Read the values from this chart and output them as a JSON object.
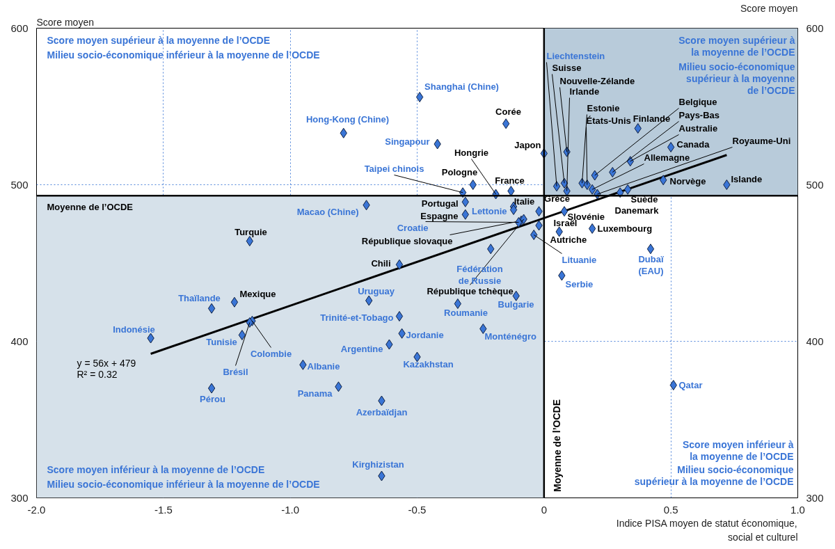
{
  "chart_data": {
    "type": "scatter",
    "ylabel": "Score moyen",
    "y2label": "Score moyen",
    "xlabel": "Indice PISA moyen de statut économique, social et culturel",
    "xlim": [
      -2.0,
      1.0
    ],
    "xticks": [
      {
        "value": -2.0,
        "label": "-2.0"
      },
      {
        "value": -1.5,
        "label": "-1.5"
      },
      {
        "value": -1.0,
        "label": "-1.0"
      },
      {
        "value": -0.5,
        "label": "-0.5"
      },
      0,
      0.5,
      {
        "value": 1.0,
        "label": "1.0"
      }
    ],
    "ylim": [
      300,
      600
    ],
    "yticks": [
      300,
      400,
      500,
      600
    ],
    "y2lim": [
      300,
      600
    ],
    "y2ticks": [
      300,
      400,
      500,
      600
    ],
    "grid": true,
    "marker": "diamond",
    "ref_lines": [
      {
        "axis": "x",
        "value": 0,
        "label": "Moyenne de l’OCDE"
      },
      {
        "axis": "y",
        "value": 493,
        "label": "Moyenne de l’OCDE"
      }
    ],
    "annotations": [
      "Score moyen supérieur à la moyenne de l’OCDE",
      "Milieu socio-économique inférieur à la moyenne de l’OCDE",
      "Score moyen supérieur à la moyenne de l’OCDE",
      "Milieu socio-économique supérieur à la moyenne de l’OCDE",
      "Score moyen inférieur à la moyenne de l’OCDE",
      "Milieu socio-économique inférieur à la moyenne de l’OCDE",
      "Score moyen inférieur à la moyenne de l’OCDE",
      "Milieu socio-économique supérieur à la moyenne de l’OCDE",
      "y = 56x + 479",
      "R² = 0.32"
    ],
    "series": [
      {
        "color": "#3a75d6",
        "x": [
          -0.15,
          0.0,
          -0.19,
          -0.28,
          -0.13,
          -0.31,
          -0.31,
          -0.12,
          -0.02,
          0.08,
          -0.02,
          0.19,
          0.06,
          -0.09,
          -0.08,
          -1.16,
          -0.57,
          -1.22,
          0.08,
          0.09,
          0.09,
          0.15,
          0.17,
          0.37,
          0.2,
          0.27,
          0.34,
          0.5,
          0.19,
          0.21,
          0.72,
          0.47,
          0.33,
          0.3
        ],
        "values": [
          539,
          520,
          494,
          500,
          496,
          489,
          481,
          486,
          483,
          483,
          474,
          472,
          470,
          477,
          478,
          464,
          449,
          425,
          501,
          521,
          496,
          501,
          500,
          536,
          506,
          508,
          515,
          524,
          497,
          494,
          500,
          503,
          497,
          495
        ],
        "value_labels": [
          "Corée",
          "Japon",
          "Hongrie",
          "Pologne",
          "France",
          "Portugal",
          "Espagne",
          "Italie",
          "Grèce",
          "Slovénie",
          "Israël",
          "Luxembourg",
          "Autriche",
          "République slovaque",
          "République tchèque",
          "Turquie",
          "Chili",
          "Mexique",
          "Suisse",
          "Nouvelle-Zélande",
          "Irlande",
          "Estonie",
          "États-Unis",
          "Finlande",
          "Belgique",
          "Pays-Bas",
          "Australie",
          "Canada",
          "Allemagne",
          "Royaume-Uni",
          "Islande",
          "Norvège",
          "Suède",
          "Danemark"
        ]
      },
      {
        "color": "#3a75d6",
        "x": [
          0.05,
          -0.49,
          -0.79,
          -0.42,
          -0.32,
          -0.7,
          -0.12,
          -0.1,
          -0.21,
          -0.04,
          0.07,
          0.42,
          -0.11,
          -0.69,
          -0.34,
          -1.31,
          -1.55,
          -0.57,
          -0.56,
          -0.24,
          -1.19,
          -1.15,
          -1.16,
          -0.61,
          -0.5,
          -0.95,
          0.51,
          -0.81,
          -1.31,
          -0.64,
          -0.64
        ],
        "values": [
          499,
          556,
          533,
          526,
          495,
          487,
          484,
          476,
          459,
          468,
          442,
          459,
          429,
          426,
          424,
          421,
          402,
          416,
          405,
          408,
          404,
          413,
          412,
          398,
          390,
          385,
          372,
          371,
          370,
          362,
          314
        ],
        "value_labels": [
          "Liechtenstein",
          "Shanghai (Chine)",
          "Hong-Kong (Chine)",
          "Singapour",
          "Taipei chinois",
          "Macao (Chine)",
          "Lettonie",
          "Croatie",
          "Fédération de Russie",
          "Lituanie",
          "Serbie",
          "Dubaï (EAU)",
          "Bulgarie",
          "Uruguay",
          "Roumanie",
          "Thaïlande",
          "Indonésie",
          "Trinité-et-Tobago",
          "Jordanie",
          "Monténégro",
          "Tunisie",
          "Colombie",
          "Brésil",
          "Argentine",
          "Kazakhstan",
          "Albanie",
          "Qatar",
          "Panama",
          "Pérou",
          "Azerbaïdjan",
          "Kirghizistan"
        ]
      },
      {
        "type": "line",
        "marker": "none",
        "color": "#000000",
        "x": [
          -1.55,
          0.72
        ],
        "values": [
          392,
          519
        ]
      }
    ]
  }
}
